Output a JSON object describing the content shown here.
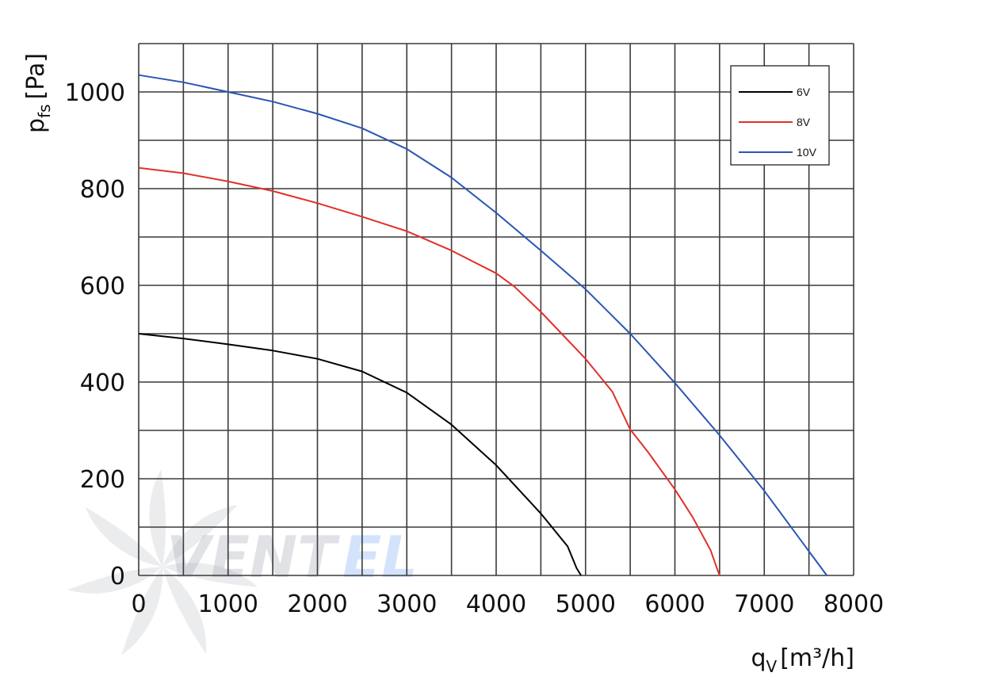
{
  "chart_data": {
    "type": "line",
    "xlabel": {
      "main": "q",
      "sub": "V",
      "unit": "[m³/h]"
    },
    "ylabel": {
      "main": "p",
      "sub": "fs",
      "unit": "[Pa]"
    },
    "xlim": [
      0,
      8000
    ],
    "ylim": [
      0,
      1000
    ],
    "x_ticks": [
      0,
      1000,
      2000,
      3000,
      4000,
      5000,
      6000,
      7000,
      8000
    ],
    "y_ticks": [
      0,
      200,
      400,
      600,
      800,
      1000
    ],
    "grid": true,
    "legend_position": "top-right",
    "series": [
      {
        "name": "6V",
        "color": "#000000",
        "points": [
          [
            0,
            500
          ],
          [
            500,
            490
          ],
          [
            1000,
            478
          ],
          [
            1500,
            465
          ],
          [
            2000,
            448
          ],
          [
            2500,
            422
          ],
          [
            3000,
            378
          ],
          [
            3500,
            312
          ],
          [
            4000,
            228
          ],
          [
            4500,
            128
          ],
          [
            4800,
            60
          ],
          [
            4900,
            15
          ],
          [
            4950,
            0
          ]
        ]
      },
      {
        "name": "8V",
        "color": "#e0312a",
        "points": [
          [
            0,
            843
          ],
          [
            500,
            832
          ],
          [
            1000,
            815
          ],
          [
            1500,
            795
          ],
          [
            2000,
            770
          ],
          [
            2500,
            742
          ],
          [
            3000,
            712
          ],
          [
            3500,
            672
          ],
          [
            4000,
            625
          ],
          [
            4200,
            598
          ],
          [
            4500,
            545
          ],
          [
            5000,
            448
          ],
          [
            5300,
            380
          ],
          [
            5500,
            302
          ],
          [
            5700,
            255
          ],
          [
            6000,
            178
          ],
          [
            6200,
            120
          ],
          [
            6400,
            52
          ],
          [
            6480,
            10
          ],
          [
            6500,
            0
          ]
        ]
      },
      {
        "name": "10V",
        "color": "#2a56b4",
        "points": [
          [
            0,
            1035
          ],
          [
            500,
            1020
          ],
          [
            1000,
            1000
          ],
          [
            1500,
            980
          ],
          [
            2000,
            955
          ],
          [
            2500,
            925
          ],
          [
            3000,
            882
          ],
          [
            3500,
            823
          ],
          [
            4000,
            750
          ],
          [
            4500,
            672
          ],
          [
            5000,
            592
          ],
          [
            5500,
            500
          ],
          [
            6000,
            398
          ],
          [
            6500,
            290
          ],
          [
            7000,
            175
          ],
          [
            7500,
            50
          ],
          [
            7700,
            0
          ]
        ]
      }
    ]
  },
  "watermark": {
    "text": "VentEL",
    "part1": "VENT",
    "part2": "EL"
  }
}
